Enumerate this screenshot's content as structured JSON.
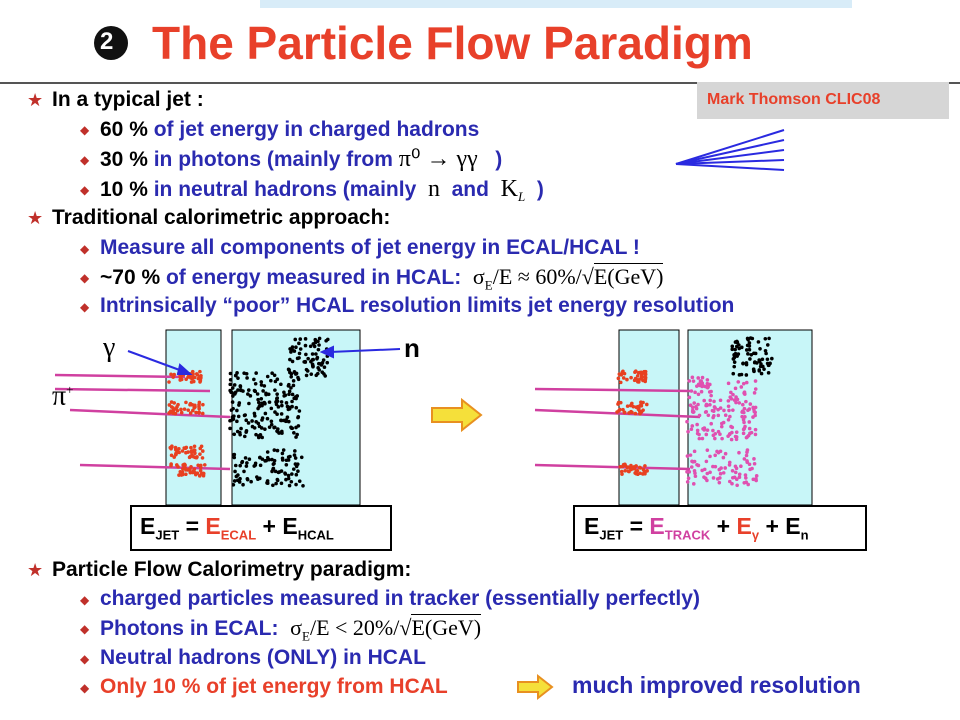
{
  "header": {
    "number": "2",
    "title": "The Particle Flow Paradigm",
    "author": "Mark Thomson CLIC08"
  },
  "jet": {
    "heading": "In a typical jet :",
    "items": [
      {
        "lead": "60 %",
        "text": "of jet energy in charged hadrons"
      },
      {
        "lead": "30 %",
        "text": "in photons  (mainly from",
        "math": "π⁰ → γγ",
        "end": ")"
      },
      {
        "lead": "10 %",
        "text": "in neutral hadrons (mainly",
        "math": "n",
        "mid": "and",
        "k": "K",
        "k_sub": "L",
        "end": ")"
      }
    ]
  },
  "traditional": {
    "heading": "Traditional calorimetric approach:",
    "items": [
      {
        "text": "Measure all components of jet energy in ECAL/HCAL !"
      },
      {
        "lead": "~70 %",
        "text": "of energy measured in HCAL:",
        "sigma": "σ",
        "sub": "E",
        "rest": "/E ≈ 60%/√",
        "root": "E(GeV)"
      },
      {
        "text": "Intrinsically “poor” HCAL resolution limits jet energy resolution"
      }
    ]
  },
  "diagram": {
    "gamma": "γ",
    "n": "n",
    "pi": "π",
    "pi_sup": "+",
    "left_eq": {
      "e1": "E",
      "s1": "JET",
      "eq": "=",
      "e2": "E",
      "s2": "ECAL",
      "plus": "+",
      "e3": "E",
      "s3": "HCAL"
    },
    "right_eq": {
      "e1": "E",
      "s1": "JET",
      "eq": "=",
      "e2": "E",
      "s2": "TRACK",
      "plus1": "+",
      "e3": "E",
      "s3": "γ",
      "plus2": "+",
      "e4": "E",
      "s4": "n"
    }
  },
  "pflow": {
    "heading": "Particle Flow Calorimetry paradigm:",
    "items": [
      {
        "text": "charged particles measured in tracker  (essentially perfectly)"
      },
      {
        "text": "Photons in ECAL:",
        "sigma": "σ",
        "sub": "E",
        "rest": "/E < 20%/√",
        "root": "E(GeV)"
      },
      {
        "text": "Neutral hadrons (ONLY) in HCAL"
      },
      {
        "text": "Only 10 % of jet energy from HCAL",
        "result": "much improved resolution"
      }
    ]
  }
}
